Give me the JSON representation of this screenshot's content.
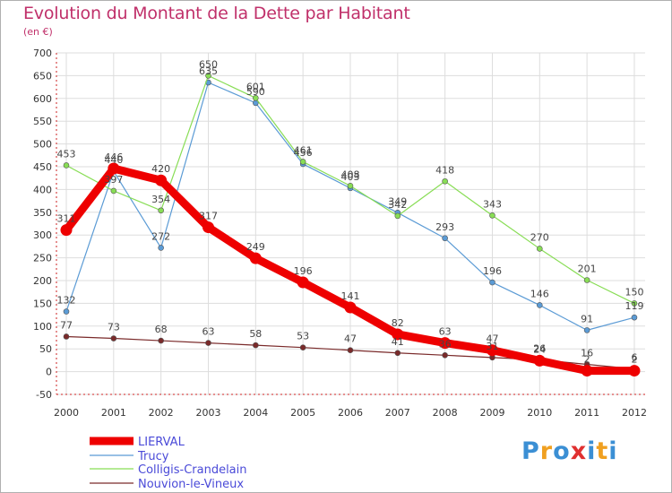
{
  "title": "Evolution du Montant de la Dette par Habitant",
  "subtitle": "(en €)",
  "logo": {
    "letters": [
      "P",
      "r",
      "o",
      "x",
      "i",
      "t",
      "i"
    ],
    "colors": [
      "#3b8fd4",
      "#f0a020",
      "#3b8fd4",
      "#e03030",
      "#3b8fd4",
      "#f0a020",
      "#3b8fd4"
    ]
  },
  "chart_data": {
    "type": "line",
    "title": "Evolution du Montant de la Dette par Habitant",
    "ylabel": "(en €)",
    "xlabel": "",
    "ylim": [
      -50,
      700
    ],
    "yticks": [
      -50,
      0,
      50,
      100,
      150,
      200,
      250,
      300,
      350,
      400,
      450,
      500,
      550,
      600,
      650,
      700
    ],
    "grid": true,
    "legend_position": "bottom-left",
    "x": [
      "2000",
      "2001",
      "2002",
      "2003",
      "2004",
      "2005",
      "2006",
      "2007",
      "2008",
      "2009",
      "2010",
      "2011",
      "2012"
    ],
    "series": [
      {
        "name": "LIERVAL",
        "color": "#ee0000",
        "values": [
          311,
          446,
          420,
          317,
          249,
          196,
          141,
          82,
          63,
          47,
          24,
          2,
          2
        ],
        "labels": [
          "311",
          "446",
          "420",
          "317",
          "249",
          "196",
          "141",
          "82",
          "63",
          "47",
          "24",
          "2",
          "2"
        ]
      },
      {
        "name": "Trucy",
        "color": "#5b9bd5",
        "values": [
          132,
          440,
          272,
          635,
          590,
          456,
          403,
          349,
          293,
          196,
          146,
          91,
          119
        ],
        "labels": [
          "132",
          "440",
          "272",
          "635",
          "590",
          "456",
          "403",
          "349",
          "293",
          "196",
          "146",
          "91",
          "119"
        ]
      },
      {
        "name": "Colligis-Crandelain",
        "color": "#88dd55",
        "values": [
          453,
          397,
          354,
          650,
          601,
          461,
          408,
          342,
          418,
          343,
          270,
          201,
          150
        ],
        "labels": [
          "453",
          "397",
          "354",
          "650",
          "601",
          "461",
          "408",
          "342",
          "418",
          "343",
          "270",
          "201",
          "150"
        ]
      },
      {
        "name": "Nouvion-le-Vineux",
        "color": "#7a2a2a",
        "values": [
          77,
          73,
          68,
          63,
          58,
          53,
          47,
          41,
          36,
          31,
          26,
          16,
          6
        ],
        "labels": [
          "77",
          "73",
          "68",
          "63",
          "58",
          "53",
          "47",
          "41",
          "36",
          "31",
          "26",
          "16",
          "6"
        ]
      }
    ]
  }
}
